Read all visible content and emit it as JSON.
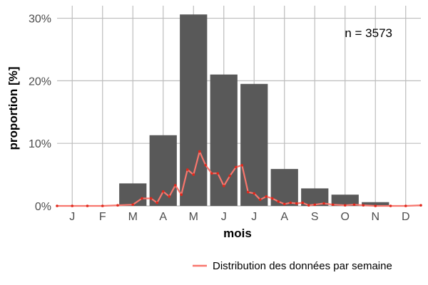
{
  "chart_data": {
    "type": "bar",
    "categories": [
      "J",
      "F",
      "M",
      "A",
      "M",
      "J",
      "J",
      "A",
      "S",
      "O",
      "N",
      "D"
    ],
    "values": [
      0.0,
      0.0,
      3.6,
      11.3,
      30.6,
      21.0,
      19.5,
      5.9,
      2.8,
      1.8,
      0.6,
      0.0
    ],
    "xlabel": "mois",
    "ylabel": "proportion [%]",
    "ylim": [
      0,
      32
    ],
    "yticks": [
      0,
      10,
      20,
      30
    ],
    "ytick_labels": [
      "0%",
      "10%",
      "20%",
      "30%"
    ],
    "grid": true,
    "bar_color": "#595959",
    "annotation": "n = 3573",
    "series": [
      {
        "name": "Distribution des données par semaine",
        "type": "line",
        "color": "#f8766d",
        "point_color": "#e0281c",
        "x": [
          0.5,
          1.0,
          1.5,
          2.0,
          2.5,
          3.0,
          3.3,
          3.6,
          3.8,
          4.0,
          4.2,
          4.4,
          4.6,
          4.8,
          5.0,
          5.2,
          5.4,
          5.6,
          5.8,
          6.0,
          6.2,
          6.4,
          6.6,
          6.8,
          7.0,
          7.2,
          7.4,
          7.6,
          7.8,
          8.0,
          8.2,
          8.4,
          8.6,
          8.8,
          9.0,
          9.3,
          9.6,
          10.0,
          10.3,
          10.6,
          11.0,
          11.5,
          12.0,
          12.5
        ],
        "values": [
          0.0,
          0.0,
          0.0,
          0.0,
          0.1,
          0.2,
          1.2,
          1.2,
          0.5,
          2.3,
          1.5,
          3.3,
          1.8,
          5.8,
          5.0,
          8.7,
          6.5,
          5.2,
          5.2,
          3.2,
          4.8,
          6.2,
          6.5,
          2.2,
          2.0,
          1.0,
          1.5,
          1.2,
          0.7,
          0.3,
          0.5,
          0.4,
          0.5,
          0.1,
          0.2,
          0.4,
          0.2,
          0.1,
          0.2,
          0.1,
          0.0,
          0.0,
          0.0,
          0.1
        ]
      }
    ],
    "legend_position": "bottom-right"
  }
}
